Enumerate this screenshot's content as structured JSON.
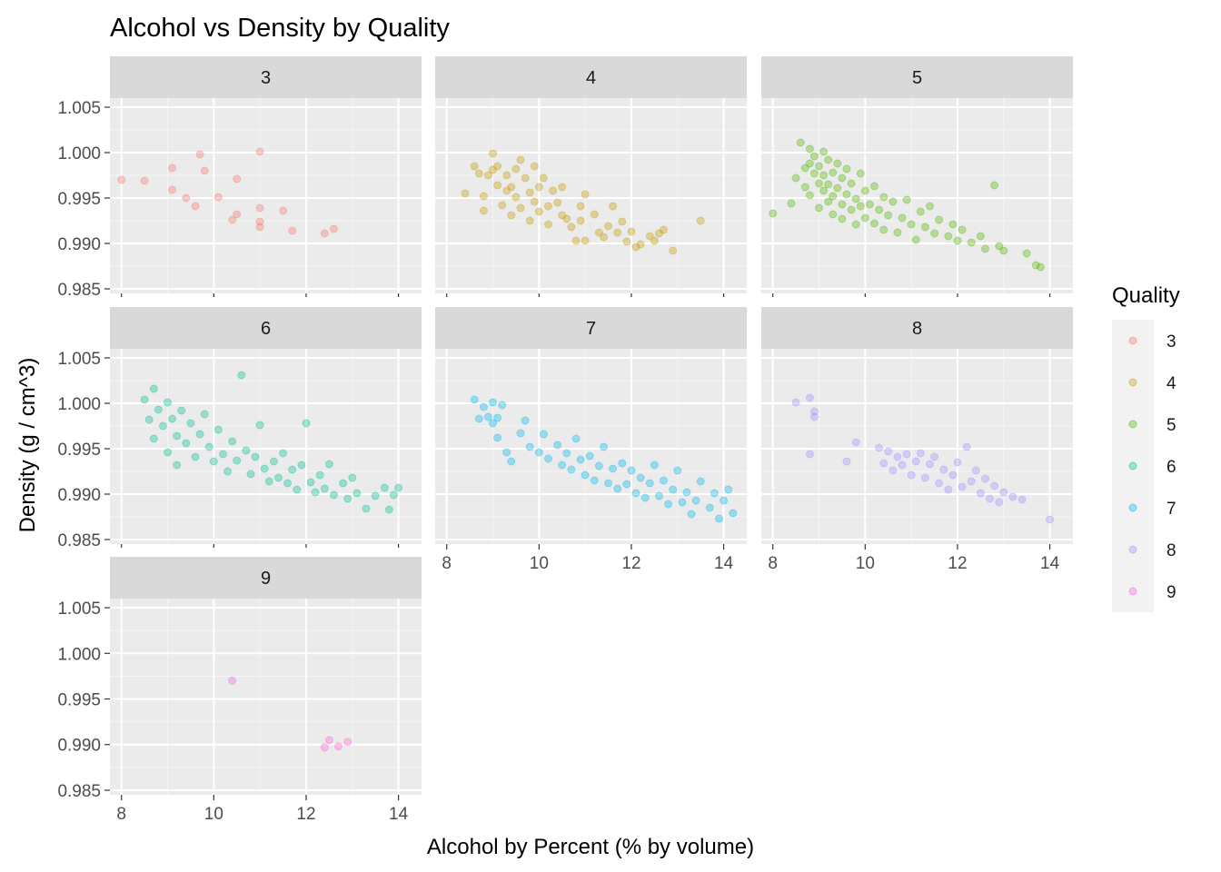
{
  "chart_data": {
    "type": "scatter",
    "title": "Alcohol vs Density by Quality",
    "xlabel": "Alcohol by Percent (% by volume)",
    "ylabel": "Density (g / cm^3)",
    "xlim": [
      7.75,
      14.5
    ],
    "ylim": [
      0.9845,
      1.006
    ],
    "x_ticks": [
      "8",
      "10",
      "12",
      "14"
    ],
    "y_ticks": [
      "0.985",
      "0.990",
      "0.995",
      "1.000",
      "1.005"
    ],
    "grid": true,
    "legend": {
      "title": "Quality",
      "position": "right",
      "entries": [
        "3",
        "4",
        "5",
        "6",
        "7",
        "8",
        "9"
      ]
    },
    "facets": [
      {
        "label": "3",
        "color": "#F8766D",
        "points": [
          [
            8.0,
            0.997
          ],
          [
            8.5,
            0.9969
          ],
          [
            9.1,
            0.9983
          ],
          [
            9.1,
            0.9959
          ],
          [
            9.4,
            0.995
          ],
          [
            9.6,
            0.9941
          ],
          [
            9.7,
            0.9998
          ],
          [
            9.8,
            0.998
          ],
          [
            10.1,
            0.9951
          ],
          [
            10.4,
            0.9926
          ],
          [
            10.5,
            0.9932
          ],
          [
            10.5,
            0.9971
          ],
          [
            11.0,
            1.0001
          ],
          [
            11.0,
            0.9939
          ],
          [
            11.0,
            0.9924
          ],
          [
            11.0,
            0.9918
          ],
          [
            11.5,
            0.9936
          ],
          [
            11.7,
            0.9914
          ],
          [
            12.4,
            0.9911
          ],
          [
            12.6,
            0.9916
          ]
        ]
      },
      {
        "label": "4",
        "color": "#C49A00",
        "points": [
          [
            8.4,
            0.9955
          ],
          [
            8.6,
            0.9985
          ],
          [
            8.7,
            0.9977
          ],
          [
            8.8,
            0.9952
          ],
          [
            8.8,
            0.9936
          ],
          [
            8.9,
            0.9975
          ],
          [
            9.0,
            0.9981
          ],
          [
            9.0,
            0.9999
          ],
          [
            9.1,
            0.9964
          ],
          [
            9.1,
            0.9985
          ],
          [
            9.2,
            0.9942
          ],
          [
            9.3,
            0.9975
          ],
          [
            9.3,
            0.9958
          ],
          [
            9.4,
            0.9962
          ],
          [
            9.4,
            0.9931
          ],
          [
            9.5,
            0.9982
          ],
          [
            9.5,
            0.9951
          ],
          [
            9.6,
            0.9939
          ],
          [
            9.6,
            0.9992
          ],
          [
            9.7,
            0.9972
          ],
          [
            9.8,
            0.9956
          ],
          [
            9.8,
            0.9925
          ],
          [
            9.9,
            0.9985
          ],
          [
            9.9,
            0.9946
          ],
          [
            10.0,
            0.9935
          ],
          [
            10.0,
            0.9962
          ],
          [
            10.1,
            0.9972
          ],
          [
            10.2,
            0.9941
          ],
          [
            10.2,
            0.9921
          ],
          [
            10.3,
            0.9958
          ],
          [
            10.4,
            0.9945
          ],
          [
            10.5,
            0.9931
          ],
          [
            10.5,
            0.9962
          ],
          [
            10.6,
            0.9927
          ],
          [
            10.7,
            0.9918
          ],
          [
            10.8,
            0.9903
          ],
          [
            10.9,
            0.9941
          ],
          [
            10.9,
            0.9925
          ],
          [
            11.0,
            0.9954
          ],
          [
            11.0,
            0.9903
          ],
          [
            11.2,
            0.9932
          ],
          [
            11.3,
            0.9912
          ],
          [
            11.4,
            0.9907
          ],
          [
            11.5,
            0.9919
          ],
          [
            11.6,
            0.9941
          ],
          [
            11.7,
            0.9912
          ],
          [
            11.8,
            0.9924
          ],
          [
            11.9,
            0.9902
          ],
          [
            12.0,
            0.9913
          ],
          [
            12.1,
            0.9896
          ],
          [
            12.2,
            0.9899
          ],
          [
            12.4,
            0.9908
          ],
          [
            12.5,
            0.9903
          ],
          [
            12.6,
            0.9911
          ],
          [
            12.7,
            0.9915
          ],
          [
            12.9,
            0.9892
          ],
          [
            13.5,
            0.9925
          ]
        ]
      },
      {
        "label": "5",
        "color": "#53B400",
        "points": [
          [
            8.0,
            0.9933
          ],
          [
            8.4,
            0.9944
          ],
          [
            8.5,
            0.9972
          ],
          [
            8.6,
            1.0011
          ],
          [
            8.7,
            0.9983
          ],
          [
            8.7,
            0.9962
          ],
          [
            8.8,
            1.0004
          ],
          [
            8.8,
            0.9988
          ],
          [
            8.8,
            0.9953
          ],
          [
            8.9,
            0.9977
          ],
          [
            8.9,
            0.9996
          ],
          [
            9.0,
            0.9966
          ],
          [
            9.0,
            0.9939
          ],
          [
            9.0,
            0.9985
          ],
          [
            9.1,
            1.0001
          ],
          [
            9.1,
            0.9958
          ],
          [
            9.1,
            0.9975
          ],
          [
            9.2,
            0.9946
          ],
          [
            9.2,
            0.9992
          ],
          [
            9.2,
            0.9965
          ],
          [
            9.3,
            0.9978
          ],
          [
            9.3,
            0.9932
          ],
          [
            9.3,
            0.9952
          ],
          [
            9.4,
            0.9988
          ],
          [
            9.4,
            0.9961
          ],
          [
            9.5,
            0.9943
          ],
          [
            9.5,
            0.9972
          ],
          [
            9.5,
            0.9927
          ],
          [
            9.6,
            0.9982
          ],
          [
            9.6,
            0.9954
          ],
          [
            9.7,
            0.9937
          ],
          [
            9.7,
            0.9966
          ],
          [
            9.8,
            0.9949
          ],
          [
            9.8,
            0.9921
          ],
          [
            9.9,
            0.9977
          ],
          [
            9.9,
            0.9941
          ],
          [
            10.0,
            0.9958
          ],
          [
            10.0,
            0.9928
          ],
          [
            10.1,
            0.9943
          ],
          [
            10.2,
            0.9963
          ],
          [
            10.2,
            0.9922
          ],
          [
            10.3,
            0.9937
          ],
          [
            10.4,
            0.9951
          ],
          [
            10.4,
            0.9915
          ],
          [
            10.5,
            0.9931
          ],
          [
            10.6,
            0.9946
          ],
          [
            10.7,
            0.9912
          ],
          [
            10.8,
            0.9928
          ],
          [
            10.9,
            0.9948
          ],
          [
            11.0,
            0.9921
          ],
          [
            11.1,
            0.9904
          ],
          [
            11.2,
            0.9935
          ],
          [
            11.3,
            0.9918
          ],
          [
            11.4,
            0.9941
          ],
          [
            11.5,
            0.9911
          ],
          [
            11.6,
            0.9926
          ],
          [
            11.8,
            0.9908
          ],
          [
            11.9,
            0.9921
          ],
          [
            12.0,
            0.9903
          ],
          [
            12.1,
            0.9915
          ],
          [
            12.3,
            0.9901
          ],
          [
            12.5,
            0.9908
          ],
          [
            12.6,
            0.9894
          ],
          [
            12.8,
            0.9964
          ],
          [
            12.9,
            0.9897
          ],
          [
            13.0,
            0.9892
          ],
          [
            13.5,
            0.9889
          ],
          [
            13.7,
            0.9876
          ],
          [
            13.8,
            0.9874
          ]
        ]
      },
      {
        "label": "6",
        "color": "#00C094",
        "points": [
          [
            8.5,
            1.0004
          ],
          [
            8.6,
            0.9982
          ],
          [
            8.7,
            1.0016
          ],
          [
            8.7,
            0.9961
          ],
          [
            8.8,
            0.9993
          ],
          [
            8.9,
            0.9975
          ],
          [
            9.0,
            1.0001
          ],
          [
            9.0,
            0.9946
          ],
          [
            9.1,
            0.9983
          ],
          [
            9.2,
            0.9964
          ],
          [
            9.2,
            0.9932
          ],
          [
            9.3,
            0.9992
          ],
          [
            9.4,
            0.9956
          ],
          [
            9.5,
            0.9978
          ],
          [
            9.6,
            0.9941
          ],
          [
            9.7,
            0.9966
          ],
          [
            9.8,
            0.9988
          ],
          [
            9.9,
            0.9952
          ],
          [
            10.0,
            0.9936
          ],
          [
            10.1,
            0.9971
          ],
          [
            10.2,
            0.9944
          ],
          [
            10.3,
            0.9925
          ],
          [
            10.4,
            0.9958
          ],
          [
            10.5,
            0.9937
          ],
          [
            10.6,
            1.0031
          ],
          [
            10.7,
            0.9948
          ],
          [
            10.8,
            0.9922
          ],
          [
            10.9,
            0.9941
          ],
          [
            11.0,
            0.9976
          ],
          [
            11.1,
            0.9928
          ],
          [
            11.2,
            0.9914
          ],
          [
            11.3,
            0.9936
          ],
          [
            11.4,
            0.9918
          ],
          [
            11.5,
            0.9945
          ],
          [
            11.6,
            0.9912
          ],
          [
            11.7,
            0.9927
          ],
          [
            11.8,
            0.9905
          ],
          [
            11.9,
            0.9932
          ],
          [
            12.0,
            0.9978
          ],
          [
            12.1,
            0.9913
          ],
          [
            12.2,
            0.9902
          ],
          [
            12.3,
            0.9921
          ],
          [
            12.4,
            0.9906
          ],
          [
            12.5,
            0.9933
          ],
          [
            12.6,
            0.9899
          ],
          [
            12.8,
            0.9912
          ],
          [
            12.9,
            0.9895
          ],
          [
            13.0,
            0.9918
          ],
          [
            13.1,
            0.9901
          ],
          [
            13.3,
            0.9884
          ],
          [
            13.5,
            0.9898
          ],
          [
            13.7,
            0.9907
          ],
          [
            13.8,
            0.9883
          ],
          [
            13.9,
            0.9899
          ],
          [
            14.0,
            0.9907
          ]
        ]
      },
      {
        "label": "7",
        "color": "#00B6EB",
        "points": [
          [
            8.6,
            1.0004
          ],
          [
            8.7,
            0.9983
          ],
          [
            8.8,
            0.9996
          ],
          [
            8.9,
            0.9985
          ],
          [
            9.0,
            0.9978
          ],
          [
            9.0,
            1.0001
          ],
          [
            9.1,
            0.9984
          ],
          [
            9.1,
            0.9962
          ],
          [
            9.2,
            0.9998
          ],
          [
            9.3,
            0.9946
          ],
          [
            9.4,
            0.9936
          ],
          [
            9.6,
            0.9967
          ],
          [
            9.7,
            0.9981
          ],
          [
            9.8,
            0.9952
          ],
          [
            10.0,
            0.9946
          ],
          [
            10.1,
            0.9966
          ],
          [
            10.2,
            0.9939
          ],
          [
            10.4,
            0.9954
          ],
          [
            10.5,
            0.9932
          ],
          [
            10.6,
            0.9945
          ],
          [
            10.7,
            0.9927
          ],
          [
            10.8,
            0.9961
          ],
          [
            10.9,
            0.9938
          ],
          [
            11.0,
            0.9921
          ],
          [
            11.1,
            0.9942
          ],
          [
            11.2,
            0.9915
          ],
          [
            11.3,
            0.9931
          ],
          [
            11.4,
            0.9952
          ],
          [
            11.5,
            0.9912
          ],
          [
            11.6,
            0.9928
          ],
          [
            11.7,
            0.9906
          ],
          [
            11.8,
            0.9934
          ],
          [
            11.9,
            0.9911
          ],
          [
            12.0,
            0.9926
          ],
          [
            12.1,
            0.9901
          ],
          [
            12.2,
            0.9918
          ],
          [
            12.3,
            0.9896
          ],
          [
            12.4,
            0.9912
          ],
          [
            12.5,
            0.9932
          ],
          [
            12.6,
            0.9898
          ],
          [
            12.7,
            0.9915
          ],
          [
            12.8,
            0.9889
          ],
          [
            12.9,
            0.9905
          ],
          [
            13.0,
            0.9926
          ],
          [
            13.1,
            0.9891
          ],
          [
            13.2,
            0.9902
          ],
          [
            13.3,
            0.9878
          ],
          [
            13.4,
            0.9893
          ],
          [
            13.5,
            0.9914
          ],
          [
            13.7,
            0.9885
          ],
          [
            13.8,
            0.9901
          ],
          [
            13.9,
            0.9873
          ],
          [
            14.0,
            0.9893
          ],
          [
            14.1,
            0.9905
          ],
          [
            14.2,
            0.9879
          ]
        ]
      },
      {
        "label": "8",
        "color": "#A58AFF",
        "points": [
          [
            8.5,
            1.0001
          ],
          [
            8.8,
            1.0006
          ],
          [
            8.8,
            0.9944
          ],
          [
            8.9,
            0.9991
          ],
          [
            8.9,
            0.9985
          ],
          [
            9.6,
            0.9936
          ],
          [
            9.8,
            0.9957
          ],
          [
            10.3,
            0.9951
          ],
          [
            10.4,
            0.9934
          ],
          [
            10.5,
            0.9947
          ],
          [
            10.6,
            0.9926
          ],
          [
            10.7,
            0.9941
          ],
          [
            10.8,
            0.9932
          ],
          [
            10.9,
            0.9944
          ],
          [
            11.0,
            0.9921
          ],
          [
            11.1,
            0.9936
          ],
          [
            11.2,
            0.9945
          ],
          [
            11.3,
            0.9918
          ],
          [
            11.4,
            0.9933
          ],
          [
            11.5,
            0.9941
          ],
          [
            11.6,
            0.9912
          ],
          [
            11.7,
            0.9927
          ],
          [
            11.8,
            0.9905
          ],
          [
            11.9,
            0.9921
          ],
          [
            12.0,
            0.9935
          ],
          [
            12.1,
            0.9908
          ],
          [
            12.2,
            0.9952
          ],
          [
            12.3,
            0.9914
          ],
          [
            12.4,
            0.9926
          ],
          [
            12.5,
            0.9901
          ],
          [
            12.6,
            0.9917
          ],
          [
            12.7,
            0.9895
          ],
          [
            12.8,
            0.9909
          ],
          [
            12.9,
            0.9891
          ],
          [
            13.0,
            0.9902
          ],
          [
            13.2,
            0.9897
          ],
          [
            13.4,
            0.9894
          ],
          [
            14.0,
            0.9872
          ]
        ]
      },
      {
        "label": "9",
        "color": "#FB61D7",
        "points": [
          [
            10.4,
            0.997
          ],
          [
            12.4,
            0.9897
          ],
          [
            12.5,
            0.9905
          ],
          [
            12.7,
            0.9898
          ],
          [
            12.9,
            0.9903
          ]
        ]
      }
    ]
  }
}
